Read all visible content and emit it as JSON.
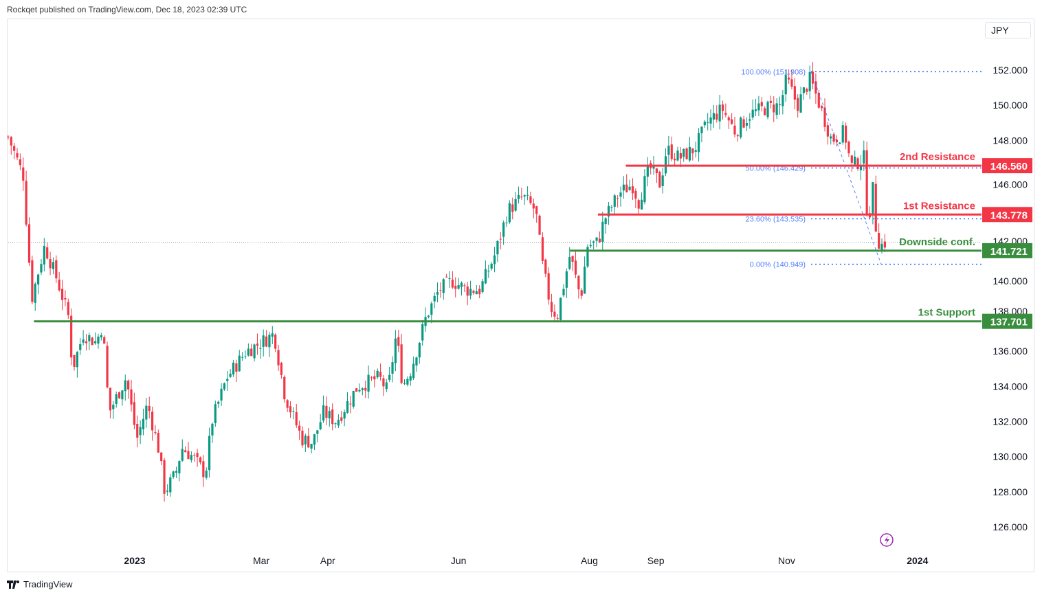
{
  "header": {
    "published": "Rockqet published on TradingView.com, Dec 18, 2023 02:39 UTC"
  },
  "currency_button": "JPY",
  "footer": {
    "brand": "TradingView"
  },
  "colors": {
    "up": "#089981",
    "down": "#f23645",
    "resistance": "#f23645",
    "support": "#388e3c",
    "fib": "#2962ff"
  },
  "chart_data": {
    "type": "candlestick",
    "title": "",
    "ylim": [
      124.5,
      154
    ],
    "y_ticks": [
      "152.000",
      "150.000",
      "148.000",
      "146.000",
      "142.000",
      "140.000",
      "138.000",
      "136.000",
      "134.000",
      "132.000",
      "130.000",
      "128.000",
      "126.000"
    ],
    "y_tick_values": [
      152,
      150,
      148,
      146,
      142,
      140,
      138,
      136,
      134,
      132,
      130,
      128,
      126
    ],
    "x_labels": [
      {
        "label": "2023",
        "day": 0,
        "bold": true
      },
      {
        "label": "Mar",
        "day": 59
      },
      {
        "label": "Apr",
        "day": 90
      },
      {
        "label": "Jun",
        "day": 151
      },
      {
        "label": "Aug",
        "day": 212
      },
      {
        "label": "Sep",
        "day": 243
      },
      {
        "label": "Nov",
        "day": 304
      },
      {
        "label": "2024",
        "day": 365,
        "bold": true
      }
    ],
    "x_range_days": [
      -59,
      394
    ],
    "price_path_note": "anchor closes by day offset from 2023-01-01",
    "anchors": [
      [
        -59,
        148.2
      ],
      [
        -52,
        146
      ],
      [
        -48,
        139
      ],
      [
        -42,
        142
      ],
      [
        -36,
        140
      ],
      [
        -31,
        138
      ],
      [
        -29,
        135
      ],
      [
        -24,
        137
      ],
      [
        -18,
        136.5
      ],
      [
        -15,
        137.5
      ],
      [
        -12,
        132.5
      ],
      [
        -4,
        134.5
      ],
      [
        1,
        131
      ],
      [
        6,
        133
      ],
      [
        11,
        130.5
      ],
      [
        14,
        128
      ],
      [
        19,
        129
      ],
      [
        22,
        130.5
      ],
      [
        27,
        130
      ],
      [
        33,
        129
      ],
      [
        36,
        132
      ],
      [
        43,
        134.5
      ],
      [
        52,
        136
      ],
      [
        59,
        136.5
      ],
      [
        65,
        137
      ],
      [
        70,
        133.5
      ],
      [
        78,
        131
      ],
      [
        83,
        130.8
      ],
      [
        88,
        132.5
      ],
      [
        94,
        132
      ],
      [
        104,
        134
      ],
      [
        114,
        134.5
      ],
      [
        118,
        133.7
      ],
      [
        122,
        137
      ],
      [
        125,
        134
      ],
      [
        129,
        135
      ],
      [
        136,
        138
      ],
      [
        142,
        139.5
      ],
      [
        148,
        140
      ],
      [
        155,
        139.5
      ],
      [
        161,
        139.5
      ],
      [
        168,
        141.5
      ],
      [
        174,
        144
      ],
      [
        181,
        144.8
      ],
      [
        187,
        144
      ],
      [
        190,
        141
      ],
      [
        194,
        138.5
      ],
      [
        197,
        138
      ],
      [
        203,
        141.5
      ],
      [
        208,
        139
      ],
      [
        211,
        142
      ],
      [
        216,
        142.2
      ],
      [
        219,
        143.5
      ],
      [
        226,
        145
      ],
      [
        232,
        145.5
      ],
      [
        235,
        144.5
      ],
      [
        240,
        146.5
      ],
      [
        245,
        145.5
      ],
      [
        248,
        147.5
      ],
      [
        254,
        147
      ],
      [
        261,
        147.5
      ],
      [
        267,
        149
      ],
      [
        274,
        149.8
      ],
      [
        280,
        148.5
      ],
      [
        287,
        149.5
      ],
      [
        293,
        149.8
      ],
      [
        301,
        150
      ],
      [
        304,
        151.5
      ],
      [
        309,
        150
      ],
      [
        315,
        151.5
      ],
      [
        320,
        149.8
      ],
      [
        325,
        148
      ],
      [
        331,
        148.5
      ],
      [
        334,
        146.5
      ],
      [
        340,
        147
      ],
      [
        342,
        143
      ],
      [
        344,
        145.5
      ],
      [
        346,
        142.5
      ],
      [
        348,
        142
      ],
      [
        350,
        142.2
      ]
    ],
    "last_price": 142.2,
    "levels": [
      {
        "label": "2nd Resistance",
        "value": 146.56,
        "tag": "146.560",
        "type": "resistance",
        "start_day": 229
      },
      {
        "label": "1st Resistance",
        "value": 143.778,
        "tag": "143.778",
        "type": "resistance",
        "start_day": 216
      },
      {
        "label": "Downside conf.",
        "value": 141.721,
        "tag": "141.721",
        "type": "support",
        "start_day": 203
      },
      {
        "label": "1st Support",
        "value": 137.701,
        "tag": "137.701",
        "type": "support",
        "start_day": -47
      }
    ],
    "fibonacci": [
      {
        "label": "100.00% (151.908)",
        "value": 151.908
      },
      {
        "label": "50.00% (146.429)",
        "value": 146.429
      },
      {
        "label": "23.60% (143.535)",
        "value": 143.535
      },
      {
        "label": "0.00% (140.949)",
        "value": 140.949
      }
    ],
    "fib_trend": {
      "from_day": 316,
      "from": 151.908,
      "to_day": 348,
      "to": 140.949
    }
  }
}
